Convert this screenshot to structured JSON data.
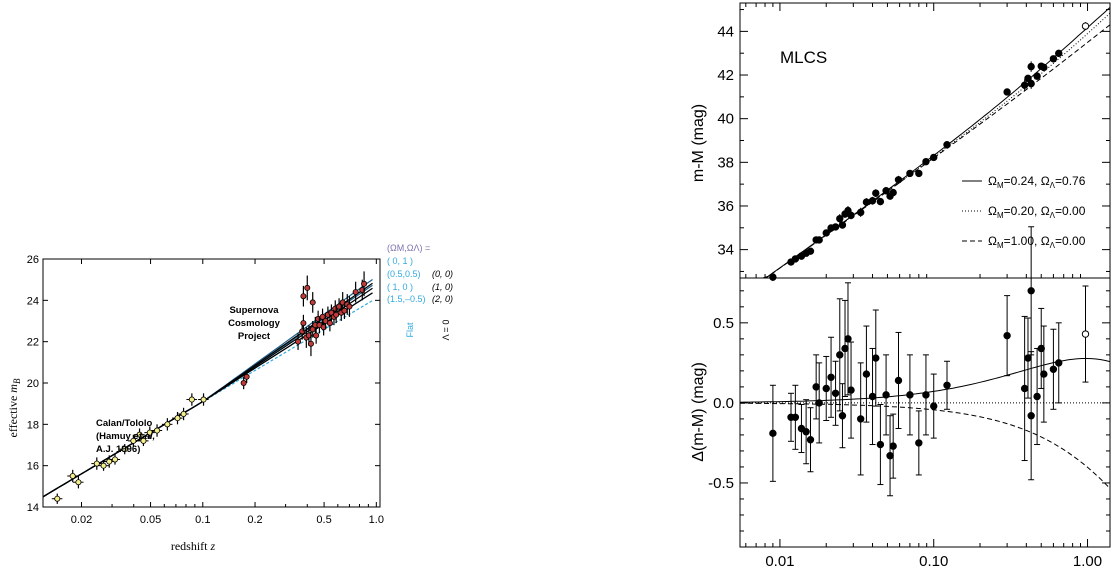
{
  "charts_colors": {
    "flat": "#33aadd",
    "lambda_zero": "#000000",
    "label_header": "#7c73b0",
    "hamuy_marker": "#f5f08a",
    "scp_marker": "#c03a3a"
  },
  "chart_data": [
    {
      "type": "scatter",
      "xlabel_prefix": "redshift",
      "xlabel_var": "z",
      "ylabel_prefix": "effective",
      "ylabel_var": "m",
      "ylabel_sub": "B",
      "x_scale": "log",
      "xlim": [
        0.012,
        1.05
      ],
      "ylim": [
        14,
        26
      ],
      "x_ticks": [
        0.02,
        0.05,
        0.1,
        0.2,
        0.5,
        1.0
      ],
      "x_tick_labels": [
        "0.02",
        "0.05",
        "0.1",
        "0.2",
        "0.5",
        "1.0"
      ],
      "y_ticks": [
        14,
        16,
        18,
        20,
        22,
        24,
        26
      ],
      "y_tick_labels": [
        "14",
        "16",
        "18",
        "20",
        "22",
        "24",
        "26"
      ],
      "annotations": {
        "calan_1": "Calan/Tololo",
        "calan_2a": "(Hamuy ",
        "calan_2b": "et al,",
        "calan_3": "A.J. 1996)",
        "scp_1": "Supernova",
        "scp_2": "Cosmology",
        "scp_3": "Project"
      },
      "legend": {
        "header": "(ΩM,ΩΛ) =",
        "flat_entries": [
          "( 0,   1 )",
          "(0.5,0.5)",
          "( 1,    0 )",
          "(1.5,–0.5)"
        ],
        "lambda_entries": [
          "(0, 0)",
          "(1, 0)",
          "(2, 0)"
        ],
        "flat_label": "Flat",
        "lambda_label": "Λ = 0"
      },
      "curves": [
        {
          "group": "flat",
          "w": [
            0.0,
            0.2,
            0.4,
            0.55
          ]
        },
        {
          "group": "lambda0",
          "w": [
            0.2,
            0.32,
            0.45
          ]
        }
      ],
      "series": [
        {
          "group": "hamuy",
          "points": [
            [
              0.0145,
              14.4,
              0.25
            ],
            [
              0.0178,
              15.5,
              0.3
            ],
            [
              0.0192,
              15.2,
              0.3
            ],
            [
              0.0245,
              16.1,
              0.3
            ],
            [
              0.0268,
              16.0,
              0.25
            ],
            [
              0.0289,
              16.2,
              0.3
            ],
            [
              0.0312,
              16.3,
              0.25
            ],
            [
              0.0355,
              16.8,
              0.25
            ],
            [
              0.0398,
              17.2,
              0.3
            ],
            [
              0.0432,
              17.5,
              0.3
            ],
            [
              0.0455,
              17.2,
              0.25
            ],
            [
              0.0495,
              17.6,
              0.3
            ],
            [
              0.0545,
              17.7,
              0.3
            ],
            [
              0.0625,
              18.0,
              0.3
            ],
            [
              0.0715,
              18.3,
              0.3
            ],
            [
              0.0775,
              18.5,
              0.3
            ],
            [
              0.0865,
              19.2,
              0.3
            ],
            [
              0.101,
              19.2,
              0.3
            ]
          ]
        },
        {
          "group": "scp",
          "points": [
            [
              0.172,
              20.0,
              0.3
            ],
            [
              0.179,
              20.3,
              0.3
            ],
            [
              0.354,
              22.0,
              0.4
            ],
            [
              0.374,
              22.5,
              0.4
            ],
            [
              0.38,
              22.9,
              0.4
            ],
            [
              0.395,
              22.2,
              0.5
            ],
            [
              0.409,
              22.3,
              0.5
            ],
            [
              0.42,
              21.9,
              0.6
            ],
            [
              0.43,
              22.6,
              0.4
            ],
            [
              0.445,
              22.8,
              0.4
            ],
            [
              0.45,
              22.3,
              0.4
            ],
            [
              0.462,
              23.1,
              0.4
            ],
            [
              0.47,
              22.8,
              0.4
            ],
            [
              0.49,
              23.2,
              0.4
            ],
            [
              0.497,
              22.7,
              0.4
            ],
            [
              0.51,
              23.0,
              0.4
            ],
            [
              0.526,
              23.3,
              0.4
            ],
            [
              0.54,
              22.9,
              0.4
            ],
            [
              0.551,
              23.4,
              0.4
            ],
            [
              0.57,
              23.2,
              0.4
            ],
            [
              0.58,
              23.6,
              0.4
            ],
            [
              0.587,
              23.3,
              0.4
            ],
            [
              0.61,
              23.7,
              0.4
            ],
            [
              0.628,
              23.4,
              0.4
            ],
            [
              0.64,
              23.9,
              0.5
            ],
            [
              0.655,
              23.5,
              0.4
            ],
            [
              0.68,
              23.8,
              0.5
            ],
            [
              0.7,
              23.7,
              0.5
            ],
            [
              0.76,
              24.4,
              0.5
            ],
            [
              0.83,
              24.5,
              0.5
            ],
            [
              0.85,
              24.8,
              0.6
            ],
            [
              0.38,
              24.2,
              0.5
            ],
            [
              0.4,
              24.6,
              0.6
            ],
            [
              0.43,
              23.9,
              0.5
            ]
          ]
        }
      ]
    },
    {
      "type": "scatter",
      "name": "top-panel",
      "title": "MLCS",
      "ylabel": "m-M (mag)",
      "x_scale": "log",
      "xlim": [
        0.0055,
        1.4
      ],
      "ylim": [
        32.7,
        45.3
      ],
      "y_ticks": [
        34,
        36,
        38,
        40,
        42,
        44
      ],
      "y_tick_labels": [
        "34",
        "36",
        "38",
        "40",
        "42",
        "44"
      ],
      "legend": [
        {
          "style": "solid",
          "label_pre": "Ω",
          "sub_m": "M",
          "mid": "=0.24, Ω",
          "sub_l": "Λ",
          "label_post": "=0.76",
          "om": 0.24,
          "ol": 0.76
        },
        {
          "style": "dotted",
          "label_pre": "Ω",
          "sub_m": "M",
          "mid": "=0.20, Ω",
          "sub_l": "Λ",
          "label_post": "=0.00",
          "om": 0.2,
          "ol": 0.0
        },
        {
          "style": "dashed",
          "label_pre": "Ω",
          "sub_m": "M",
          "mid": "=1.00, Ω",
          "sub_l": "Λ",
          "label_post": "=0.00",
          "om": 1.0,
          "ol": 0.0
        }
      ]
    },
    {
      "type": "scatter",
      "name": "bottom-panel",
      "ylabel": "Δ(m-M) (mag)",
      "xlabel": "",
      "x_scale": "log",
      "xlim": [
        0.0055,
        1.4
      ],
      "ylim": [
        -0.9,
        0.78
      ],
      "x_ticks": [
        0.01,
        0.1,
        1.0
      ],
      "x_tick_labels": [
        "0.01",
        "0.10",
        "1.00"
      ],
      "y_ticks": [
        -0.5,
        0.0,
        0.5
      ],
      "y_tick_labels": [
        "-0.5",
        "0.0",
        "0.5"
      ],
      "series": [
        {
          "name": "residuals",
          "points": [
            [
              0.009,
              -0.19,
              0.3
            ],
            [
              0.0118,
              -0.09,
              0.15
            ],
            [
              0.0126,
              -0.09,
              0.2
            ],
            [
              0.0138,
              -0.16,
              0.15
            ],
            [
              0.0148,
              -0.18,
              0.2
            ],
            [
              0.0158,
              -0.23,
              0.2
            ],
            [
              0.0172,
              0.1,
              0.2
            ],
            [
              0.018,
              0.0,
              0.25
            ],
            [
              0.02,
              0.09,
              0.2
            ],
            [
              0.0215,
              0.16,
              0.25
            ],
            [
              0.023,
              0.06,
              0.2
            ],
            [
              0.0245,
              0.3,
              0.35
            ],
            [
              0.0255,
              -0.08,
              0.2
            ],
            [
              0.0265,
              0.34,
              0.3
            ],
            [
              0.0277,
              0.4,
              0.35
            ],
            [
              0.029,
              0.08,
              0.3
            ],
            [
              0.0335,
              -0.1,
              0.35
            ],
            [
              0.0365,
              0.18,
              0.3
            ],
            [
              0.04,
              0.04,
              0.3
            ],
            [
              0.042,
              0.28,
              0.3
            ],
            [
              0.045,
              -0.26,
              0.25
            ],
            [
              0.049,
              0.05,
              0.25
            ],
            [
              0.052,
              -0.33,
              0.25
            ],
            [
              0.0545,
              -0.27,
              0.2
            ],
            [
              0.059,
              0.14,
              0.3
            ],
            [
              0.07,
              0.05,
              0.25
            ],
            [
              0.08,
              -0.25,
              0.2
            ],
            [
              0.089,
              0.05,
              0.25
            ],
            [
              0.1,
              -0.02,
              0.2
            ],
            [
              0.122,
              0.11,
              0.15
            ],
            [
              0.3,
              0.42,
              0.25
            ],
            [
              0.39,
              0.09,
              0.45
            ],
            [
              0.41,
              0.28,
              0.25
            ],
            [
              0.43,
              -0.08,
              0.4
            ],
            [
              0.43,
              0.7,
              0.4
            ],
            [
              0.47,
              0.04,
              0.3
            ],
            [
              0.5,
              0.34,
              0.25
            ],
            [
              0.52,
              0.18,
              0.3
            ],
            [
              0.6,
              0.21,
              0.25
            ],
            [
              0.65,
              0.25,
              0.25
            ]
          ]
        },
        {
          "name": "open",
          "points": [
            [
              0.97,
              0.43,
              0.3
            ]
          ]
        }
      ]
    }
  ]
}
